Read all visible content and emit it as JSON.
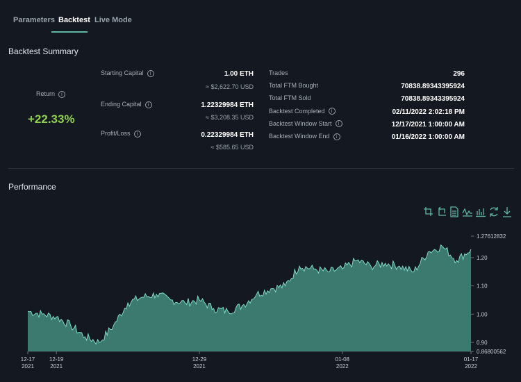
{
  "tabs": [
    {
      "label": "Parameters"
    },
    {
      "label": "Backtest"
    },
    {
      "label": "Live Mode"
    }
  ],
  "summary": {
    "title": "Backtest Summary",
    "return_label": "Return",
    "return_value": "+22.33%",
    "starting_capital": {
      "label": "Starting Capital",
      "value": "1.00  ETH",
      "usd": "≈ $2,622.70 USD"
    },
    "ending_capital": {
      "label": "Ending Capital",
      "value": "1.22329984  ETH",
      "usd": "≈ $3,208.35 USD"
    },
    "profit_loss": {
      "label": "Profit/Loss",
      "value": "0.22329984  ETH",
      "usd": "≈ $585.65 USD"
    },
    "stats": [
      {
        "label": "Trades",
        "value": "296",
        "info": false
      },
      {
        "label": "Total FTM Bought",
        "value": "70838.89343395924",
        "info": false
      },
      {
        "label": "Total FTM Sold",
        "value": "70838.89343395924",
        "info": false
      },
      {
        "label": "Backtest Completed",
        "value": "02/11/2022 2:02:18 PM",
        "info": true
      },
      {
        "label": "Backtest Window Start",
        "value": "12/17/2021 1:00:00 AM",
        "info": true
      },
      {
        "label": "Backtest Window End",
        "value": "01/16/2022 1:00:00 AM",
        "info": true
      }
    ]
  },
  "performance": {
    "title": "Performance",
    "toolbar": [
      "crop-icon",
      "crop-reset-icon",
      "document-icon",
      "line-chart-icon",
      "bar-chart-icon",
      "refresh-icon",
      "download-icon"
    ]
  },
  "colors": {
    "accent": "#5fb7a6",
    "positive": "#8fd14f",
    "area_fill": "#3c7a70",
    "line": "#7fd8c8"
  },
  "chart_data": {
    "type": "area",
    "title": "",
    "xlabel": "",
    "ylabel": "",
    "ylim": [
      0.86800562,
      1.27612832
    ],
    "y_ticks": [
      "1.27612832",
      "1.20",
      "1.10",
      "1.00",
      "0.90",
      "0.86800562"
    ],
    "x_ticks": [
      {
        "line1": "12-17",
        "line2": "2021",
        "x": "2021-12-17"
      },
      {
        "line1": "12-19",
        "line2": "2021",
        "x": "2021-12-19"
      },
      {
        "line1": "12-29",
        "line2": "2021",
        "x": "2021-12-29"
      },
      {
        "line1": "01-08",
        "line2": "2022",
        "x": "2022-01-08"
      },
      {
        "line1": "01-17",
        "line2": "2022",
        "x": "2022-01-17"
      }
    ],
    "x_range": [
      "2021-12-17",
      "2022-01-17"
    ],
    "series": [
      {
        "x": [
          "2021-12-17",
          "2021-12-18",
          "2021-12-19",
          "2021-12-20",
          "2021-12-21",
          "2021-12-22",
          "2021-12-23",
          "2021-12-24",
          "2021-12-25",
          "2021-12-26",
          "2021-12-27",
          "2021-12-28",
          "2021-12-29",
          "2021-12-30",
          "2021-12-31",
          "2022-01-01",
          "2022-01-02",
          "2022-01-03",
          "2022-01-04",
          "2022-01-05",
          "2022-01-06",
          "2022-01-07",
          "2022-01-08",
          "2022-01-09",
          "2022-01-10",
          "2022-01-11",
          "2022-01-12",
          "2022-01-13",
          "2022-01-14",
          "2022-01-15",
          "2022-01-16",
          "2022-01-17"
        ],
        "y": [
          1.01,
          1.0,
          0.99,
          0.96,
          0.92,
          0.9,
          0.96,
          1.04,
          1.06,
          1.07,
          1.05,
          1.04,
          1.05,
          1.02,
          1.01,
          1.03,
          1.07,
          1.09,
          1.1,
          1.17,
          1.16,
          1.15,
          1.16,
          1.19,
          1.17,
          1.18,
          1.17,
          1.15,
          1.22,
          1.24,
          1.19,
          1.23
        ]
      }
    ]
  }
}
